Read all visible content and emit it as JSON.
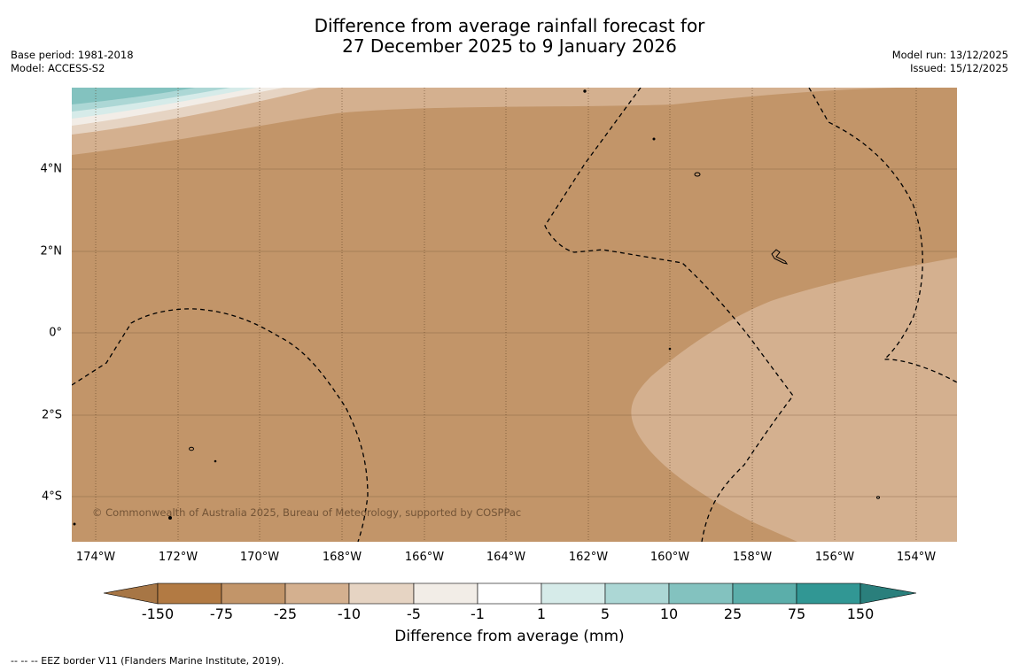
{
  "title": {
    "line1": "Difference from average rainfall forecast for",
    "line2": "27 December 2025 to 9 January 2026"
  },
  "meta_left": {
    "base_period": "Base period: 1981-2018",
    "model": "Model: ACCESS-S2"
  },
  "meta_right": {
    "model_run": "Model run: 13/12/2025",
    "issued": "Issued: 15/12/2025"
  },
  "copyright": "© Commonwealth of Australia 2025, Bureau of Meteorology, supported by COSPPac",
  "latitude_labels": [
    "4°N",
    "2°N",
    "0°",
    "2°S",
    "4°S"
  ],
  "longitude_labels": [
    "174°W",
    "172°W",
    "170°W",
    "168°W",
    "166°W",
    "164°W",
    "162°W",
    "160°W",
    "158°W",
    "156°W",
    "154°W"
  ],
  "colorbar": {
    "title": "Difference from average (mm)",
    "labels": [
      "-150",
      "-75",
      "-25",
      "-10",
      "-5",
      "-1",
      "1",
      "5",
      "10",
      "25",
      "75",
      "150"
    ],
    "colors": [
      "#a77645",
      "#b27a43",
      "#c29569",
      "#d4b08f",
      "#e6d4c3",
      "#f2ede7",
      "#ffffff",
      "#d6ebe9",
      "#acd7d5",
      "#83c2bf",
      "#5baeaa",
      "#319794",
      "#2a7f7c"
    ]
  },
  "map_colors": {
    "dry_strong": "#c29569",
    "dry_moderate": "#d4b08f",
    "dry_light": "#e6d4c3",
    "neutral": "#f2ede7",
    "wet_light": "#d6ebe9",
    "wet_moderate": "#acd7d5",
    "wet_strong": "#83c2bf"
  },
  "footnote": "--  --  -- EEZ border V11 (Flanders Marine Institute, 2019)."
}
